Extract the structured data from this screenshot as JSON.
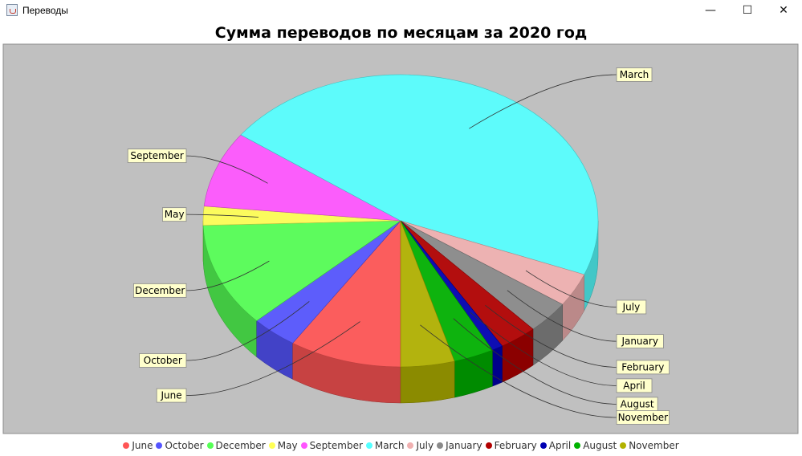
{
  "window": {
    "title": "Переводы",
    "minimize_glyph": "—",
    "maximize_glyph": "☐",
    "close_glyph": "✕"
  },
  "colors": {
    "plot_background": "#c0c0c0",
    "label_background": "#ffffcc"
  },
  "chart_data": {
    "type": "pie",
    "style": "3d",
    "title": "Сумма переводов по месяцам за 2020 год",
    "legend_position": "bottom",
    "slices": [
      {
        "label": "June",
        "value": 9.2,
        "color": "#ff5555"
      },
      {
        "label": "October",
        "value": 3.8,
        "color": "#5555ff"
      },
      {
        "label": "December",
        "value": 11.5,
        "color": "#55ff55"
      },
      {
        "label": "May",
        "value": 2.1,
        "color": "#ffff55"
      },
      {
        "label": "September",
        "value": 8.4,
        "color": "#ff55ff"
      },
      {
        "label": "March",
        "value": 46.0,
        "color": "#55ffff"
      },
      {
        "label": "July",
        "value": 3.7,
        "color": "#f0b0b0"
      },
      {
        "label": "January",
        "value": 3.6,
        "color": "#8a8a8a"
      },
      {
        "label": "February",
        "value": 3.1,
        "color": "#b20000"
      },
      {
        "label": "April",
        "value": 0.9,
        "color": "#0000b2"
      },
      {
        "label": "August",
        "value": 3.3,
        "color": "#00b200"
      },
      {
        "label": "November",
        "value": 4.4,
        "color": "#b2b200"
      }
    ]
  }
}
